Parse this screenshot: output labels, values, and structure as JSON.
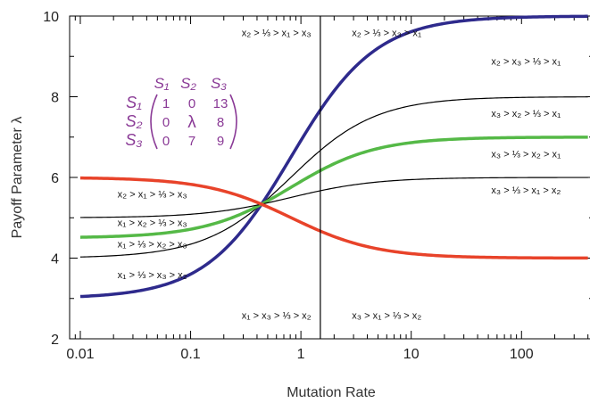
{
  "chart_data": {
    "type": "line",
    "xlabel": "Mutation Rate",
    "ylabel": "Payoff Parameter λ",
    "xscale": "log",
    "xlim": [
      0.008,
      450
    ],
    "ylim": [
      2,
      10
    ],
    "x_ticks": [
      0.01,
      0.1,
      1,
      10,
      100
    ],
    "x_tick_labels": [
      "0.01",
      "0.1",
      "1",
      "10",
      "100"
    ],
    "y_ticks": [
      2,
      4,
      6,
      8,
      10
    ],
    "y_tick_labels": [
      "2",
      "4",
      "6",
      "8",
      "10"
    ],
    "grid": false,
    "vertical_line_x": 1.5,
    "crossing_point": {
      "x": 1.5,
      "y": 5.33
    },
    "series": [
      {
        "color": "#2e2a8c",
        "width": 3.5,
        "start": 3.0,
        "end": 10.0
      },
      {
        "color": "#000000",
        "width": 1.2,
        "start": 4.0,
        "end": 8.0
      },
      {
        "color": "#55b947",
        "width": 3.5,
        "start": 4.5,
        "end": 7.0
      },
      {
        "color": "#000000",
        "width": 1.2,
        "start": 5.0,
        "end": 6.0
      },
      {
        "color": "#e8432a",
        "width": 3.5,
        "start": 6.0,
        "end": 4.0
      }
    ],
    "region_labels": [
      {
        "text": "x₂ > ⅓ > x₁ > x₃",
        "x": 0.6,
        "y": 9.5
      },
      {
        "text": "x₂ > ⅓ > x₃ > x₁",
        "x": 6,
        "y": 9.5
      },
      {
        "text": "x₂ > x₃ > ⅓ > x₁",
        "x": 110,
        "y": 8.8
      },
      {
        "text": "x₃ > x₂ > ⅓ > x₁",
        "x": 110,
        "y": 7.5
      },
      {
        "text": "x₃ > ⅓ > x₂ > x₁",
        "x": 110,
        "y": 6.5
      },
      {
        "text": "x₃ > ⅓ > x₁ > x₂",
        "x": 110,
        "y": 5.6
      },
      {
        "text": "x₂ > x₁ > ⅓ > x₃",
        "x": 0.045,
        "y": 5.5
      },
      {
        "text": "x₁ > x₂ > ⅓ > x₃",
        "x": 0.045,
        "y": 4.8
      },
      {
        "text": "x₁ > ⅓ > x₂ > x₃",
        "x": 0.045,
        "y": 4.27
      },
      {
        "text": "x₁ > ⅓ > x₃ > x₂",
        "x": 0.045,
        "y": 3.5
      },
      {
        "text": "x₁ > x₃ > ⅓ > x₂",
        "x": 0.6,
        "y": 2.5
      },
      {
        "text": "x₃ > x₁ > ⅓ > x₂",
        "x": 6,
        "y": 2.5
      }
    ],
    "matrix": {
      "col_headers": [
        "S₁",
        "S₂",
        "S₃"
      ],
      "row_headers": [
        "S₁",
        "S₂",
        "S₃"
      ],
      "cells": [
        [
          "1",
          "0",
          "13"
        ],
        [
          "0",
          "λ",
          "8"
        ],
        [
          "0",
          "7",
          "9"
        ]
      ]
    }
  }
}
